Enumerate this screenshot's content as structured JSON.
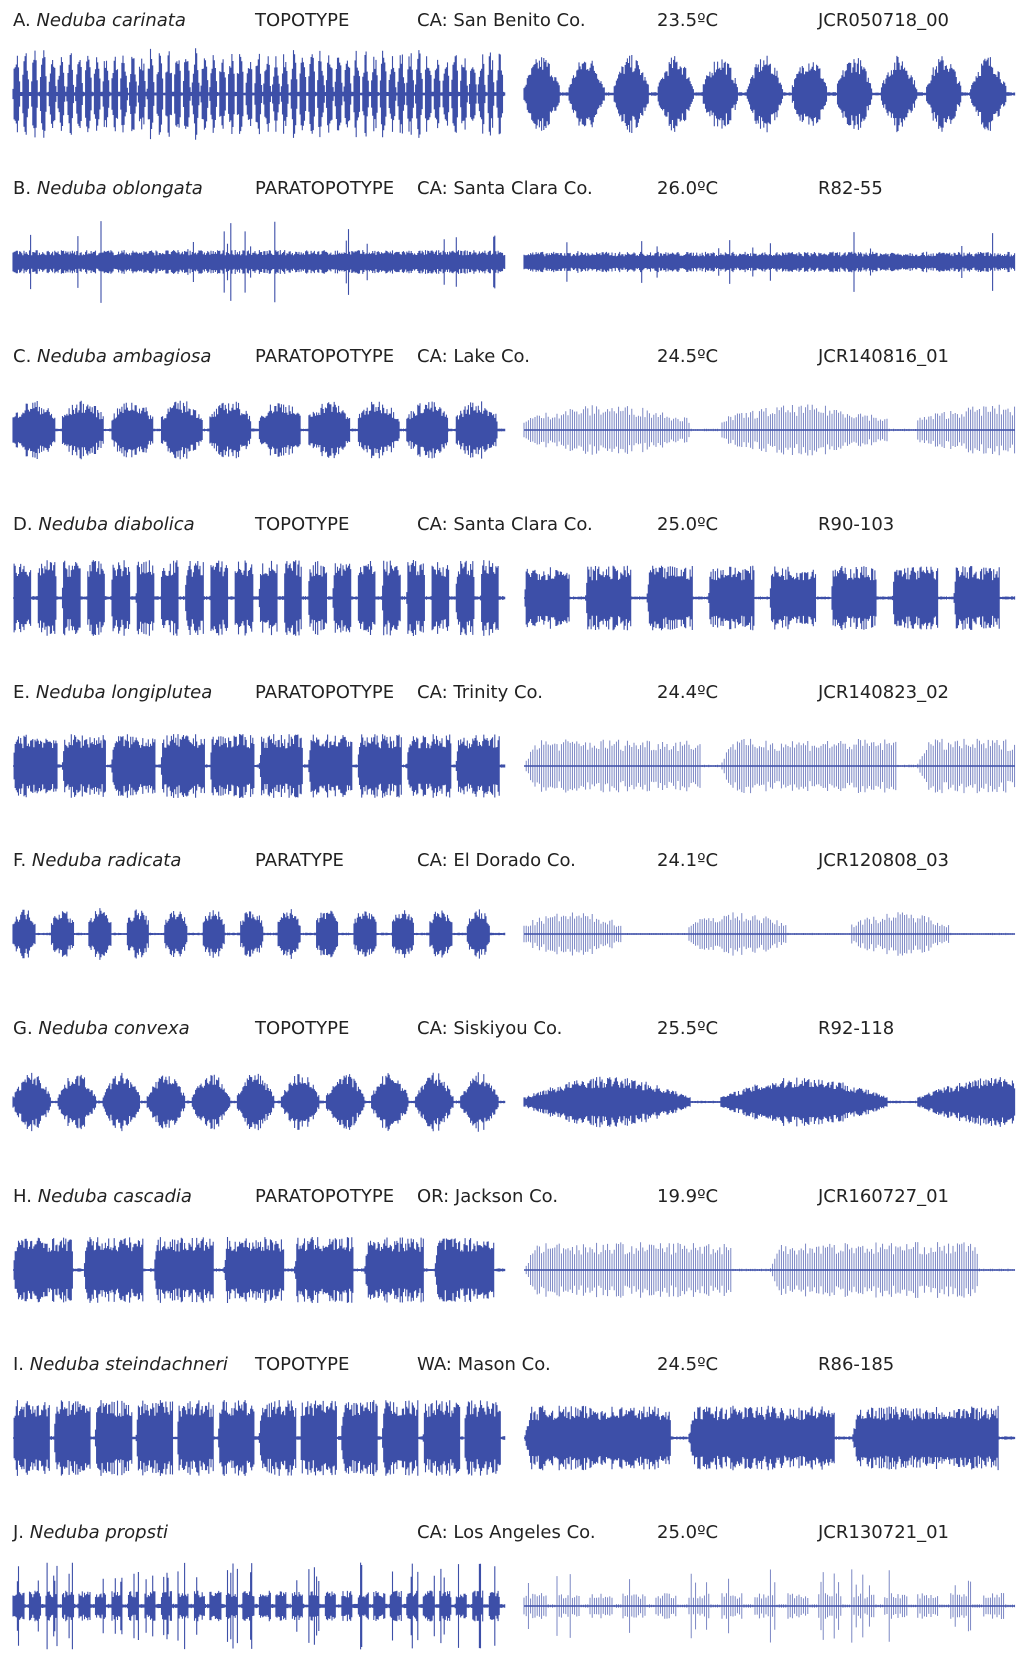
{
  "rows": [
    {
      "letter": "A.",
      "species": "Neduba carinata",
      "type": "TOPOTYPE",
      "location": "CA: San Benito Co.",
      "temperature": "23.5ºC",
      "recording": "JCR050718_00"
    },
    {
      "letter": "B.",
      "species": "Neduba oblongata",
      "type": "PARATOPOTYPE",
      "location": "CA: Santa Clara Co.",
      "temperature": "26.0ºC",
      "recording": "R82-55"
    },
    {
      "letter": "C.",
      "species": "Neduba ambagiosa",
      "type": "PARATOPOTYPE",
      "location": "CA: Lake Co.",
      "temperature": "24.5ºC",
      "recording": "JCR140816_01"
    },
    {
      "letter": "D.",
      "species": "Neduba diabolica",
      "type": "TOPOTYPE",
      "location": "CA: Santa Clara Co.",
      "temperature": "25.0ºC",
      "recording": "R90-103"
    },
    {
      "letter": "E.",
      "species": "Neduba longiplutea",
      "type": "PARATOPOTYPE",
      "location": "CA: Trinity Co.",
      "temperature": "24.4ºC",
      "recording": "JCR140823_02"
    },
    {
      "letter": "F.",
      "species": "Neduba radicata",
      "type": "PARATYPE",
      "location": "CA: El Dorado Co.",
      "temperature": "24.1ºC",
      "recording": "JCR120808_03"
    },
    {
      "letter": "G.",
      "species": "Neduba convexa",
      "type": "TOPOTYPE",
      "location": "CA: Siskiyou Co.",
      "temperature": "25.5ºC",
      "recording": "R92-118"
    },
    {
      "letter": "H.",
      "species": "Neduba cascadia",
      "type": "PARATOPOTYPE",
      "location": "OR: Jackson Co.",
      "temperature": "19.9ºC",
      "recording": "JCR160727_01"
    },
    {
      "letter": "I.",
      "species": "Neduba steindachneri",
      "type": "TOPOTYPE",
      "location": "WA: Mason Co.",
      "temperature": "24.5ºC",
      "recording": "R86-185"
    },
    {
      "letter": "J.",
      "species": "Neduba propsti",
      "location": "CA: Los Angeles Co.",
      "temperature": "25.0ºC",
      "recording": "JCR130721_01"
    }
  ]
}
